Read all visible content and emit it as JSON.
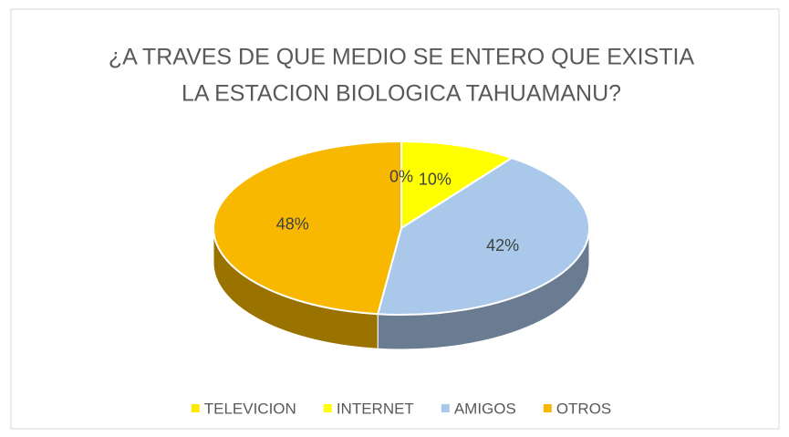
{
  "chart_data": {
    "type": "pie",
    "title": [
      "¿A TRAVES DE QUE MEDIO SE ENTERO QUE EXISTIA",
      "LA ESTACION BIOLOGICA TAHUAMANU?"
    ],
    "categories": [
      "TELEVICION",
      "INTERNET",
      "AMIGOS",
      "OTROS"
    ],
    "values": [
      0,
      10,
      42,
      48
    ],
    "value_labels": [
      "0%",
      "10%",
      "42%",
      "48%"
    ],
    "colors": [
      "#ffe800",
      "#ffff00",
      "#a9c8ea",
      "#f9b800"
    ],
    "legend": "bottom"
  }
}
